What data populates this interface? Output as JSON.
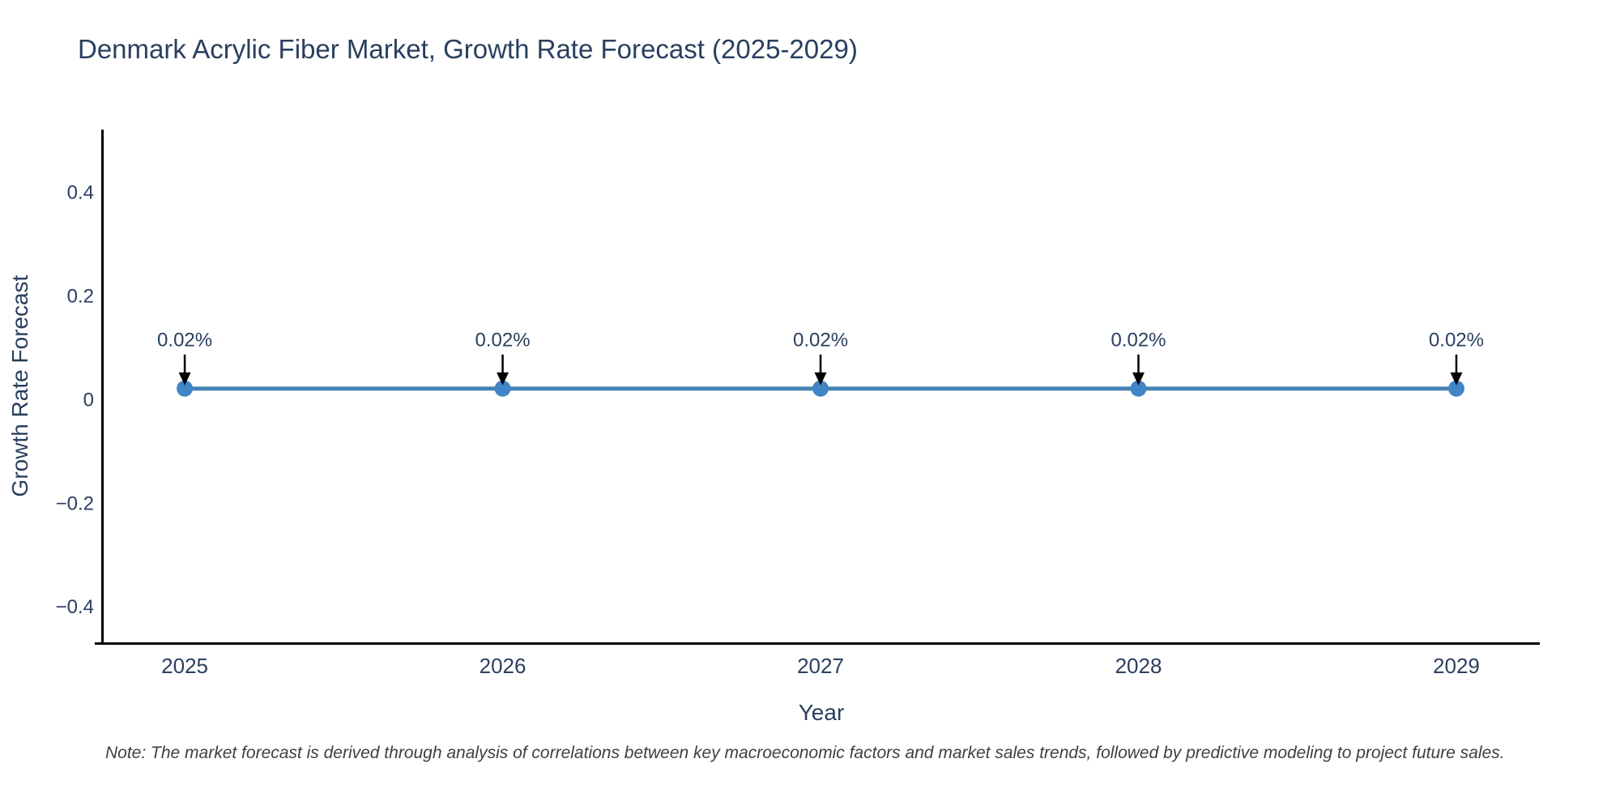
{
  "figure": {
    "title": "Denmark Acrylic Fiber Market, Growth Rate Forecast (2025-2029)",
    "note": "Note: The market forecast is derived through analysis of correlations between key macroeconomic factors and market sales trends, followed by predictive modeling to project future sales."
  },
  "chart_data": {
    "type": "line",
    "title": "Denmark Acrylic Fiber Market, Growth Rate Forecast (2025-2029)",
    "xlabel": "Year",
    "ylabel": "Growth Rate Forecast",
    "x": [
      2025,
      2026,
      2027,
      2028,
      2029
    ],
    "series": [
      {
        "name": "Growth Rate Forecast",
        "values": [
          0.02,
          0.02,
          0.02,
          0.02,
          0.02
        ]
      }
    ],
    "point_labels": [
      "0.02%",
      "0.02%",
      "0.02%",
      "0.02%",
      "0.02%"
    ],
    "yticks": [
      0.4,
      0.2,
      0,
      -0.2,
      -0.4
    ],
    "ytick_labels": [
      "0.4",
      "0.2",
      "0",
      "−0.2",
      "−0.4"
    ],
    "xtick_labels": [
      "2025",
      "2026",
      "2027",
      "2028",
      "2029"
    ],
    "xlim": [
      2024.745,
      2029.26
    ],
    "ylim": [
      -0.47,
      0.52
    ],
    "grid": false,
    "legend_position": "none",
    "annotation_arrow_direction": "down",
    "colors": {
      "line": "#4682b4",
      "marker": "#4085c5",
      "axis": "#000000",
      "tick_text": "#2a3f5f",
      "title_text": "#2a3f5f",
      "annotation_text": "#2a3f5f",
      "arrow": "#000000",
      "note_text": "#3f3f3f"
    }
  }
}
